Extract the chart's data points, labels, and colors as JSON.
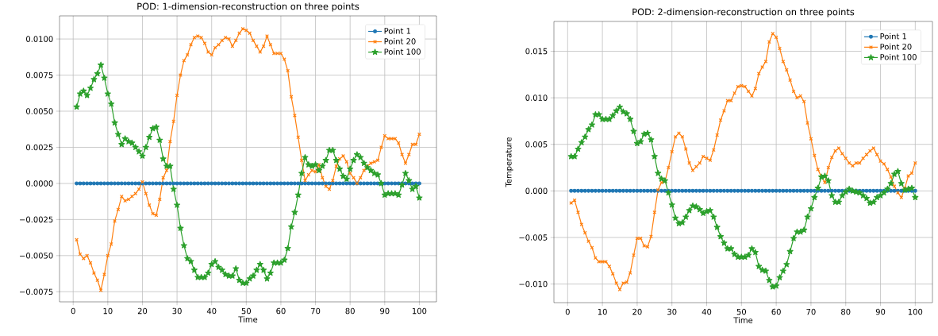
{
  "chart_data": [
    {
      "type": "line",
      "title": "POD: 1-dimension-reconstruction on three points",
      "xlabel": "Time",
      "grid": true,
      "legend": "top right",
      "x": [
        1,
        2,
        3,
        4,
        5,
        6,
        7,
        8,
        9,
        10,
        11,
        12,
        13,
        14,
        15,
        16,
        17,
        18,
        19,
        20,
        21,
        22,
        23,
        24,
        25,
        26,
        27,
        28,
        29,
        30,
        31,
        32,
        33,
        34,
        35,
        36,
        37,
        38,
        39,
        40,
        41,
        42,
        43,
        44,
        45,
        46,
        47,
        48,
        49,
        50,
        51,
        52,
        53,
        54,
        55,
        56,
        57,
        58,
        59,
        60,
        61,
        62,
        63,
        64,
        65,
        66,
        67,
        68,
        69,
        70,
        71,
        72,
        73,
        74,
        75,
        76,
        77,
        78,
        79,
        80,
        81,
        82,
        83,
        84,
        85,
        86,
        87,
        88,
        89,
        90,
        91,
        92,
        93,
        94,
        95,
        96,
        97,
        98,
        99,
        100
      ],
      "xlim": [
        -3.95,
        104.95
      ],
      "xticks": [
        0,
        10,
        20,
        30,
        40,
        50,
        60,
        70,
        80,
        90,
        100
      ],
      "ylim": [
        -0.0082,
        0.0116
      ],
      "yticks": [
        {
          "value": -0.0075,
          "label": "−0.0075"
        },
        {
          "value": -0.005,
          "label": "−0.0050"
        },
        {
          "value": -0.0025,
          "label": "−0.0025"
        },
        {
          "value": 0,
          "label": "0.0000"
        },
        {
          "value": 0.0025,
          "label": "0.0025"
        },
        {
          "value": 0.005,
          "label": "0.0050"
        },
        {
          "value": 0.0075,
          "label": "0.0075"
        },
        {
          "value": 0.01,
          "label": "0.0100"
        }
      ],
      "series": [
        {
          "name": "Point 1",
          "color": "#1f77b4",
          "marker": "circle",
          "values": [
            0,
            0,
            0,
            0,
            0,
            0,
            0,
            0,
            0,
            0,
            0,
            0,
            0,
            0,
            0,
            0,
            0,
            0,
            0,
            0,
            0,
            0,
            0,
            0,
            0,
            0,
            0,
            0,
            0,
            0,
            0,
            0,
            0,
            0,
            0,
            0,
            0,
            0,
            0,
            0,
            0,
            0,
            0,
            0,
            0,
            0,
            0,
            0,
            0,
            0,
            0,
            0,
            0,
            0,
            0,
            0,
            0,
            0,
            0,
            0,
            0,
            0,
            0,
            0,
            0,
            0,
            0,
            0,
            0,
            0,
            0,
            0,
            0,
            0,
            0,
            0,
            0,
            0,
            0,
            0,
            0,
            0,
            0,
            0,
            0,
            0,
            0,
            0,
            0,
            0,
            0,
            0,
            0,
            0,
            0,
            0,
            0,
            0,
            0,
            0
          ]
        },
        {
          "name": "Point 20",
          "color": "#ff7f0e",
          "marker": "cross",
          "values": [
            -0.0039,
            -0.0049,
            -0.0052,
            -0.005,
            -0.0055,
            -0.0062,
            -0.0067,
            -0.0074,
            -0.0063,
            -0.005,
            -0.0042,
            -0.0026,
            -0.0018,
            -0.0009,
            -0.0012,
            -0.0011,
            -0.0009,
            -0.0007,
            -0.0004,
            0.0001,
            -0.0007,
            -0.0015,
            -0.0021,
            -0.0022,
            -0.0011,
            0.0004,
            0.0009,
            0.0029,
            0.0043,
            0.0061,
            0.0075,
            0.0085,
            0.0089,
            0.0096,
            0.0101,
            0.0102,
            0.0101,
            0.0097,
            0.0091,
            0.0089,
            0.0094,
            0.0096,
            0.0099,
            0.0101,
            0.01,
            0.0095,
            0.0099,
            0.0104,
            0.0107,
            0.0106,
            0.0104,
            0.0099,
            0.0095,
            0.0091,
            0.0095,
            0.0102,
            0.0096,
            0.009,
            0.009,
            0.009,
            0.0086,
            0.0078,
            0.006,
            0.0047,
            0.0032,
            0.0016,
            0.0002,
            0.0006,
            0.0009,
            0.0008,
            0.0013,
            0.0004,
            -0.0002,
            -0.0004,
            0.0002,
            0.0012,
            0.0017,
            0.0019,
            0.0015,
            0.0007,
            0.0004,
            0,
            0.0004,
            0.0009,
            0.0012,
            0.0014,
            0.0015,
            0.0016,
            0.0025,
            0.0033,
            0.0031,
            0.0031,
            0.0031,
            0.0028,
            0.002,
            0.0014,
            0.002,
            0.0027,
            0.0027,
            0.0034
          ]
        },
        {
          "name": "Point 100",
          "color": "#2ca02c",
          "marker": "star",
          "values": [
            0.0053,
            0.0062,
            0.0064,
            0.0061,
            0.0066,
            0.0072,
            0.0076,
            0.0082,
            0.0073,
            0.0062,
            0.0055,
            0.0042,
            0.0034,
            0.0027,
            0.0031,
            0.0029,
            0.0028,
            0.0025,
            0.0022,
            0.0019,
            0.0025,
            0.0032,
            0.0038,
            0.0039,
            0.003,
            0.0017,
            0.0012,
            0.0012,
            -0.0004,
            -0.0015,
            -0.0031,
            -0.0043,
            -0.0052,
            -0.0054,
            -0.006,
            -0.0065,
            -0.0065,
            -0.0065,
            -0.0062,
            -0.0056,
            -0.0054,
            -0.0058,
            -0.006,
            -0.0063,
            -0.0064,
            -0.0064,
            -0.0059,
            -0.0067,
            -0.0069,
            -0.0069,
            -0.0066,
            -0.0064,
            -0.006,
            -0.0056,
            -0.006,
            -0.0066,
            -0.0062,
            -0.0055,
            -0.0055,
            -0.0055,
            -0.0053,
            -0.0045,
            -0.003,
            -0.002,
            -0.0008,
            0.0007,
            0.0018,
            0.0013,
            0.0012,
            0.0013,
            0.0009,
            0.0012,
            0.0016,
            0.0023,
            0.0023,
            0.0016,
            0.001,
            0.0005,
            0.0003,
            0.001,
            0.0016,
            0.002,
            0.0018,
            0.0014,
            0.0011,
            0.0009,
            0.0007,
            0.0006,
            0,
            -0.0008,
            -0.0007,
            -0.0007,
            -0.0007,
            -0.0008,
            -0.0001,
            0.0007,
            0.0002,
            -0.0004,
            -0.0002,
            -0.001
          ]
        }
      ]
    },
    {
      "type": "line",
      "title": "POD: 2-dimension-reconstruction on three points",
      "xlabel": "Time",
      "ylabel": "Temperature",
      "grid": true,
      "legend": "top right",
      "x": [
        1,
        2,
        3,
        4,
        5,
        6,
        7,
        8,
        9,
        10,
        11,
        12,
        13,
        14,
        15,
        16,
        17,
        18,
        19,
        20,
        21,
        22,
        23,
        24,
        25,
        26,
        27,
        28,
        29,
        30,
        31,
        32,
        33,
        34,
        35,
        36,
        37,
        38,
        39,
        40,
        41,
        42,
        43,
        44,
        45,
        46,
        47,
        48,
        49,
        50,
        51,
        52,
        53,
        54,
        55,
        56,
        57,
        58,
        59,
        60,
        61,
        62,
        63,
        64,
        65,
        66,
        67,
        68,
        69,
        70,
        71,
        72,
        73,
        74,
        75,
        76,
        77,
        78,
        79,
        80,
        81,
        82,
        83,
        84,
        85,
        86,
        87,
        88,
        89,
        90,
        91,
        92,
        93,
        94,
        95,
        96,
        97,
        98,
        99,
        100
      ],
      "xlim": [
        -3.95,
        104.95
      ],
      "xticks": [
        0,
        10,
        20,
        30,
        40,
        50,
        60,
        70,
        80,
        90,
        100
      ],
      "ylim": [
        -0.012,
        0.0182
      ],
      "yticks": [
        {
          "value": -0.01,
          "label": "−0.010"
        },
        {
          "value": -0.005,
          "label": "−0.005"
        },
        {
          "value": 0,
          "label": "0.000"
        },
        {
          "value": 0.005,
          "label": "0.005"
        },
        {
          "value": 0.01,
          "label": "0.010"
        },
        {
          "value": 0.015,
          "label": "0.015"
        }
      ],
      "series": [
        {
          "name": "Point 1",
          "color": "#1f77b4",
          "marker": "circle",
          "values": [
            0,
            0,
            0,
            0,
            0,
            0,
            0,
            0,
            0,
            0,
            0,
            0,
            0,
            0,
            0,
            0,
            0,
            0,
            0,
            0,
            0,
            0,
            0,
            0,
            0,
            0,
            0,
            0,
            0,
            0,
            0,
            0,
            0,
            0,
            0,
            0,
            0,
            0,
            0,
            0,
            0,
            0,
            0,
            0,
            0,
            0,
            0,
            0,
            0,
            0,
            0,
            0,
            0,
            0,
            0,
            0,
            0,
            0,
            0,
            0,
            0,
            0,
            0,
            0,
            0,
            0,
            0,
            0,
            0,
            0,
            0,
            0,
            0,
            0,
            0,
            0,
            0,
            0,
            0,
            0,
            0,
            0,
            0,
            0,
            0,
            0,
            0,
            0,
            0,
            0,
            0,
            0,
            0,
            0,
            0,
            0,
            0,
            0,
            0,
            0
          ]
        },
        {
          "name": "Point 20",
          "color": "#ff7f0e",
          "marker": "cross",
          "values": [
            -0.0013,
            -0.001,
            -0.0023,
            -0.0036,
            -0.0045,
            -0.0054,
            -0.0061,
            -0.0072,
            -0.0076,
            -0.0076,
            -0.0076,
            -0.0081,
            -0.0089,
            -0.0099,
            -0.0106,
            -0.0099,
            -0.0098,
            -0.0088,
            -0.0069,
            -0.0051,
            -0.0051,
            -0.0059,
            -0.006,
            -0.0049,
            -0.0023,
            0.0001,
            0.0009,
            0.001,
            0.0025,
            0.0042,
            0.0058,
            0.0062,
            0.0058,
            0.0045,
            0.003,
            0.0022,
            0.0026,
            0.003,
            0.0037,
            0.0035,
            0.0033,
            0.0044,
            0.006,
            0.0076,
            0.0086,
            0.0097,
            0.0097,
            0.0105,
            0.0112,
            0.0113,
            0.0112,
            0.0107,
            0.0102,
            0.011,
            0.0126,
            0.0133,
            0.0139,
            0.016,
            0.0169,
            0.0165,
            0.0153,
            0.0139,
            0.013,
            0.0119,
            0.0107,
            0.01,
            0.0102,
            0.0096,
            0.0073,
            0.0056,
            0.0038,
            0.0023,
            0.0015,
            0.0009,
            0.0025,
            0.0036,
            0.0043,
            0.0046,
            0.004,
            0.0035,
            0.003,
            0.0027,
            0.003,
            0.003,
            0.0035,
            0.0039,
            0.0043,
            0.0046,
            0.0039,
            0.0032,
            0.0029,
            0.0023,
            0.0015,
            0.0005,
            -0.0002,
            -0.0007,
            0.0003,
            0.0016,
            0.0019,
            0.003
          ]
        },
        {
          "name": "Point 100",
          "color": "#2ca02c",
          "marker": "star",
          "values": [
            0.0037,
            0.0037,
            0.0045,
            0.0052,
            0.0058,
            0.0066,
            0.0071,
            0.0082,
            0.0082,
            0.0077,
            0.0077,
            0.0077,
            0.0081,
            0.0086,
            0.009,
            0.0085,
            0.0083,
            0.0077,
            0.0064,
            0.0051,
            0.0053,
            0.0061,
            0.0062,
            0.0055,
            0.0037,
            0.0019,
            0.0013,
            0.0011,
            -0.0002,
            -0.0015,
            -0.0029,
            -0.0035,
            -0.0034,
            -0.0028,
            -0.0021,
            -0.0016,
            -0.0017,
            -0.002,
            -0.0024,
            -0.0022,
            -0.0021,
            -0.0028,
            -0.0039,
            -0.0049,
            -0.0056,
            -0.0062,
            -0.0062,
            -0.0068,
            -0.0071,
            -0.0071,
            -0.0071,
            -0.0069,
            -0.0062,
            -0.0066,
            -0.0081,
            -0.0085,
            -0.0086,
            -0.0096,
            -0.0103,
            -0.0102,
            -0.0093,
            -0.0086,
            -0.0079,
            -0.0065,
            -0.0051,
            -0.0044,
            -0.0044,
            -0.0042,
            -0.0028,
            -0.0019,
            -0.0007,
            0.0003,
            0.0015,
            0.0016,
            0.0011,
            -0.0005,
            -0.0012,
            -0.0012,
            -0.0005,
            -0.0001,
            0.0002,
            0,
            -0.0001,
            -0.0002,
            -0.0005,
            -0.0008,
            -0.0013,
            -0.0012,
            -0.0007,
            -0.0005,
            -0.0002,
            0.0002,
            0.0008,
            0.0018,
            0.0021,
            0.0008,
            0.0001,
            0.0002,
            0.0003,
            -0.0007
          ]
        }
      ]
    }
  ]
}
